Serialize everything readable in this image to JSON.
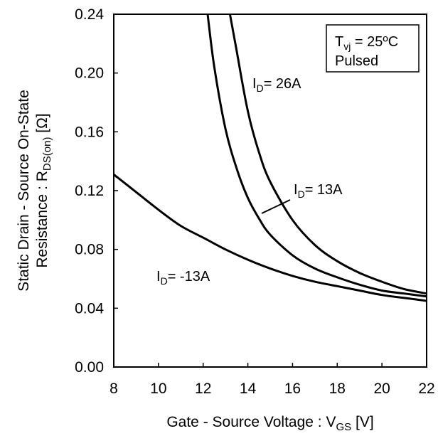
{
  "chart_data": {
    "type": "line",
    "xlabel": {
      "main": "Gate - Source Voltage : V",
      "sub": "GS",
      "unit": " [V]"
    },
    "ylabel": {
      "line1": "Static Drain - Source On-State",
      "line2_main": "Resistance : R",
      "line2_sub": "DS(on)",
      "line2_unit": " [Ω]"
    },
    "xlim": [
      8,
      22
    ],
    "ylim": [
      0.0,
      0.24
    ],
    "xticks": [
      8,
      10,
      12,
      14,
      16,
      18,
      20,
      22
    ],
    "yticks": [
      "0.00",
      "0.04",
      "0.08",
      "0.12",
      "0.16",
      "0.20",
      "0.24"
    ],
    "grid": false,
    "legend_box": {
      "line1_main": "T",
      "line1_sub": "vj",
      "line1_rest": " = 25ºC",
      "line2": "Pulsed"
    },
    "series": [
      {
        "name": "I_D= 26A",
        "label_main": "I",
        "label_sub": "D",
        "label_rest": "= 26A",
        "x": [
          13.2,
          13.5,
          14.0,
          14.5,
          15.0,
          16.0,
          17.0,
          18.0,
          19.0,
          20.0,
          21.0,
          22.0
        ],
        "y": [
          0.24,
          0.215,
          0.174,
          0.146,
          0.126,
          0.1,
          0.083,
          0.072,
          0.064,
          0.058,
          0.053,
          0.05
        ]
      },
      {
        "name": "I_D= 13A",
        "label_main": "I",
        "label_sub": "D",
        "label_rest": "= 13A",
        "x": [
          12.2,
          12.5,
          13.0,
          13.5,
          14.0,
          14.5,
          15.0,
          16.0,
          17.0,
          18.0,
          19.0,
          20.0,
          21.0,
          22.0
        ],
        "y": [
          0.24,
          0.204,
          0.162,
          0.135,
          0.115,
          0.101,
          0.09,
          0.076,
          0.067,
          0.061,
          0.056,
          0.052,
          0.05,
          0.048
        ]
      },
      {
        "name": "I_D= -13A",
        "label_main": "I",
        "label_sub": "D",
        "label_rest": "= -13A",
        "x": [
          8,
          9,
          10,
          11,
          12,
          13,
          14,
          15,
          16,
          17,
          18,
          19,
          20,
          21,
          22
        ],
        "y": [
          0.131,
          0.119,
          0.107,
          0.096,
          0.088,
          0.08,
          0.073,
          0.067,
          0.062,
          0.058,
          0.055,
          0.052,
          0.049,
          0.047,
          0.045
        ]
      }
    ]
  }
}
